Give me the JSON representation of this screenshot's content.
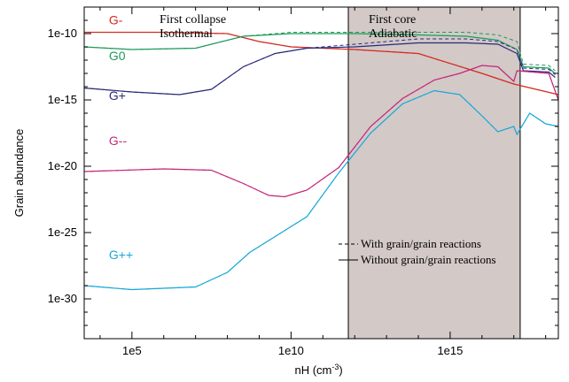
{
  "chart_data": {
    "type": "line",
    "title": "",
    "xlabel": "nH (cm",
    "xlabel_sup": "-3",
    "xlabel_end": ")",
    "ylabel": "Grain abundance",
    "xscale": "log",
    "yscale": "log",
    "xlim_log10": [
      3.5,
      18.4
    ],
    "ylim_log10": [
      -33,
      -8
    ],
    "x_ticks": [
      {
        "log10": 5,
        "label": "1e5"
      },
      {
        "log10": 10,
        "label": "1e10"
      },
      {
        "log10": 15,
        "label": "1e15"
      }
    ],
    "y_ticks": [
      {
        "log10": -10,
        "label": "1e-10"
      },
      {
        "log10": -15,
        "label": "1e-15"
      },
      {
        "log10": -20,
        "label": "1e-20"
      },
      {
        "log10": -25,
        "label": "1e-25"
      },
      {
        "log10": -30,
        "label": "1e-30"
      }
    ],
    "regions": [
      {
        "label_line1": "First collapse",
        "label_line2": "Isothermal",
        "x_from_log10": 3.5,
        "x_to_log10": 11.8,
        "shaded": false
      },
      {
        "label_line1": "First core",
        "label_line2": "Adiabatic",
        "x_from_log10": 11.8,
        "x_to_log10": 17.2,
        "shaded": true,
        "color": "#d3c9c7"
      }
    ],
    "legend": {
      "placement": "bottom-right",
      "entries": [
        {
          "label": "With grain/grain reactions",
          "linestyle": "dashed"
        },
        {
          "label": "Without grain/grain reactions",
          "linestyle": "solid"
        }
      ]
    },
    "series": [
      {
        "name": "G-",
        "color": "#d42a1e",
        "label_pos": [
          4.5,
          -9.3
        ],
        "solid": [
          [
            3.5,
            -9.9
          ],
          [
            6,
            -9.9
          ],
          [
            8,
            -10.0
          ],
          [
            9,
            -10.6
          ],
          [
            10,
            -11.0
          ],
          [
            11,
            -11.1
          ],
          [
            12,
            -11.2
          ],
          [
            14,
            -11.5
          ],
          [
            16,
            -13.0
          ],
          [
            17,
            -13.8
          ],
          [
            18.4,
            -14.6
          ]
        ],
        "dashed": [
          [
            3.5,
            -9.9
          ],
          [
            6,
            -9.9
          ],
          [
            8,
            -10.0
          ],
          [
            9,
            -10.6
          ],
          [
            10,
            -11.0
          ],
          [
            11,
            -11.1
          ],
          [
            12,
            -11.2
          ],
          [
            14,
            -11.5
          ],
          [
            16,
            -13.0
          ],
          [
            17,
            -13.8
          ],
          [
            18.4,
            -14.6
          ]
        ]
      },
      {
        "name": "G0",
        "color": "#1e9a5a",
        "label_pos": [
          4.5,
          -12.0
        ],
        "solid": [
          [
            3.5,
            -11.0
          ],
          [
            5,
            -11.2
          ],
          [
            7,
            -11.1
          ],
          [
            8.5,
            -10.2
          ],
          [
            10,
            -10.0
          ],
          [
            12,
            -10.0
          ],
          [
            14,
            -10.1
          ],
          [
            15.5,
            -10.2
          ],
          [
            16.5,
            -10.5
          ],
          [
            17.1,
            -11.2
          ],
          [
            17.3,
            -12.5
          ],
          [
            18.1,
            -12.6
          ],
          [
            18.3,
            -13.0
          ]
        ],
        "dashed": [
          [
            3.5,
            -11.0
          ],
          [
            5,
            -11.2
          ],
          [
            7,
            -11.1
          ],
          [
            8.5,
            -10.2
          ],
          [
            10,
            -9.9
          ],
          [
            12,
            -9.9
          ],
          [
            14,
            -9.9
          ],
          [
            15.5,
            -9.9
          ],
          [
            16.5,
            -10.1
          ],
          [
            17.1,
            -10.6
          ],
          [
            17.3,
            -12.3
          ],
          [
            18.1,
            -12.4
          ],
          [
            18.3,
            -12.8
          ]
        ]
      },
      {
        "name": "G+",
        "color": "#2a2a7a",
        "label_pos": [
          4.5,
          -15.0
        ],
        "solid": [
          [
            3.5,
            -14.1
          ],
          [
            5,
            -14.4
          ],
          [
            6.5,
            -14.6
          ],
          [
            7.5,
            -14.2
          ],
          [
            8.5,
            -12.5
          ],
          [
            9.5,
            -11.5
          ],
          [
            10.5,
            -11.1
          ],
          [
            12,
            -11.0
          ],
          [
            14,
            -10.7
          ],
          [
            15.5,
            -10.7
          ],
          [
            16.5,
            -10.8
          ],
          [
            17.1,
            -11.5
          ],
          [
            17.3,
            -12.8
          ],
          [
            18.1,
            -12.9
          ],
          [
            18.3,
            -13.3
          ]
        ],
        "dashed": [
          [
            3.5,
            -14.1
          ],
          [
            5,
            -14.4
          ],
          [
            6.5,
            -14.6
          ],
          [
            7.5,
            -14.2
          ],
          [
            8.5,
            -12.5
          ],
          [
            9.5,
            -11.5
          ],
          [
            10.5,
            -11.1
          ],
          [
            12,
            -10.8
          ],
          [
            14,
            -10.4
          ],
          [
            15.5,
            -10.4
          ],
          [
            16.5,
            -10.6
          ],
          [
            17.1,
            -11.2
          ],
          [
            17.3,
            -12.6
          ],
          [
            18.1,
            -12.7
          ],
          [
            18.3,
            -13.1
          ]
        ]
      },
      {
        "name": "G--",
        "color": "#c4287a",
        "label_pos": [
          4.5,
          -18.4
        ],
        "solid": [
          [
            3.5,
            -20.4
          ],
          [
            6,
            -20.2
          ],
          [
            7.5,
            -20.3
          ],
          [
            8.5,
            -21.3
          ],
          [
            9.3,
            -22.2
          ],
          [
            9.8,
            -22.3
          ],
          [
            10.5,
            -21.8
          ],
          [
            11.5,
            -20.1
          ],
          [
            12.5,
            -17.0
          ],
          [
            13.5,
            -14.9
          ],
          [
            14.5,
            -13.5
          ],
          [
            15.3,
            -13.0
          ],
          [
            16,
            -12.4
          ],
          [
            16.5,
            -12.5
          ],
          [
            17,
            -13.6
          ],
          [
            17.1,
            -12.8
          ],
          [
            18.1,
            -13.0
          ],
          [
            18.4,
            -15.0
          ]
        ],
        "dashed": [
          [
            3.5,
            -20.4
          ],
          [
            6,
            -20.2
          ],
          [
            7.5,
            -20.3
          ],
          [
            8.5,
            -21.3
          ],
          [
            9.3,
            -22.2
          ],
          [
            9.8,
            -22.3
          ],
          [
            10.5,
            -21.8
          ],
          [
            11.5,
            -20.1
          ],
          [
            12.5,
            -17.0
          ],
          [
            13.5,
            -14.9
          ],
          [
            14.5,
            -13.5
          ],
          [
            15.3,
            -13.0
          ],
          [
            16,
            -12.4
          ],
          [
            16.5,
            -12.5
          ],
          [
            17,
            -13.6
          ],
          [
            17.1,
            -12.8
          ],
          [
            18.1,
            -13.0
          ],
          [
            18.4,
            -15.0
          ]
        ]
      },
      {
        "name": "G++",
        "color": "#1aa8d8",
        "label_pos": [
          4.5,
          -27.0
        ],
        "solid": [
          [
            3.5,
            -29.0
          ],
          [
            5,
            -29.3
          ],
          [
            6,
            -29.2
          ],
          [
            7,
            -29.1
          ],
          [
            8,
            -28.0
          ],
          [
            8.7,
            -26.5
          ],
          [
            9.5,
            -25.3
          ],
          [
            10.5,
            -23.8
          ],
          [
            11.5,
            -20.5
          ],
          [
            12.5,
            -17.5
          ],
          [
            13.5,
            -15.3
          ],
          [
            14.5,
            -14.3
          ],
          [
            15.3,
            -14.6
          ],
          [
            16,
            -16.2
          ],
          [
            16.5,
            -17.4
          ],
          [
            17,
            -17.0
          ],
          [
            17.1,
            -17.6
          ],
          [
            17.5,
            -16.0
          ],
          [
            18,
            -16.8
          ],
          [
            18.4,
            -17.0
          ]
        ],
        "dashed": [
          [
            3.5,
            -29.0
          ],
          [
            5,
            -29.3
          ],
          [
            6,
            -29.2
          ],
          [
            7,
            -29.1
          ],
          [
            8,
            -28.0
          ],
          [
            8.7,
            -26.5
          ],
          [
            9.5,
            -25.3
          ],
          [
            10.5,
            -23.8
          ],
          [
            11.5,
            -20.5
          ],
          [
            12.5,
            -17.5
          ],
          [
            13.5,
            -15.3
          ],
          [
            14.5,
            -14.3
          ],
          [
            15.3,
            -14.6
          ],
          [
            16,
            -16.2
          ],
          [
            16.5,
            -17.4
          ],
          [
            17,
            -17.0
          ],
          [
            17.1,
            -17.6
          ],
          [
            17.5,
            -16.0
          ],
          [
            18,
            -16.8
          ],
          [
            18.4,
            -17.0
          ]
        ]
      }
    ]
  }
}
